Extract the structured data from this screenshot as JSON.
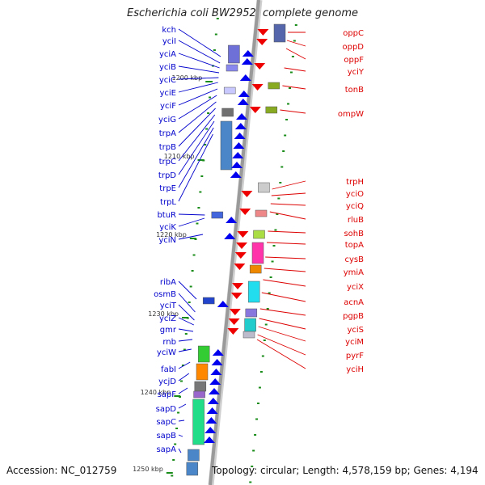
{
  "title": "Escherichia coli BW2952, complete genome",
  "accession": "Accession: NC_012759",
  "summary": "Topology: circular; Length: 4,578,159 bp; Genes: 4,194",
  "colors": {
    "backbone": "#9a9a9a",
    "left_label": "#0000cc",
    "right_label": "#dd0000",
    "left_strand": "#0000ee",
    "right_strand": "#ee0000",
    "tick": "#1a8c1a"
  },
  "scale_labels": [
    "1200 kbp",
    "1210 kbp",
    "1220 kbp",
    "1230 kbp",
    "1240 kbp",
    "1250 kbp"
  ],
  "left_genes": [
    "kch",
    "yciI",
    "yciA",
    "yciB",
    "yciC",
    "yciE",
    "yciF",
    "yciG",
    "trpA",
    "trpB",
    "trpC",
    "trpD",
    "trpE",
    "trpL",
    "btuR",
    "yciK",
    "yciN",
    "ribA",
    "osmB",
    "yciT",
    "yciZ",
    "gmr",
    "rnb",
    "yciW",
    "fabI",
    "ycjD",
    "sapF",
    "sapD",
    "sapC",
    "sapB",
    "sapA"
  ],
  "right_genes": [
    "oppC",
    "oppD",
    "oppF",
    "yciY",
    "tonB",
    "ompW",
    "trpH",
    "yciO",
    "yciQ",
    "rluB",
    "sohB",
    "topA",
    "cysB",
    "ymiA",
    "yciX",
    "acnA",
    "pgpB",
    "yciS",
    "yciM",
    "pyrF",
    "yciH"
  ]
}
